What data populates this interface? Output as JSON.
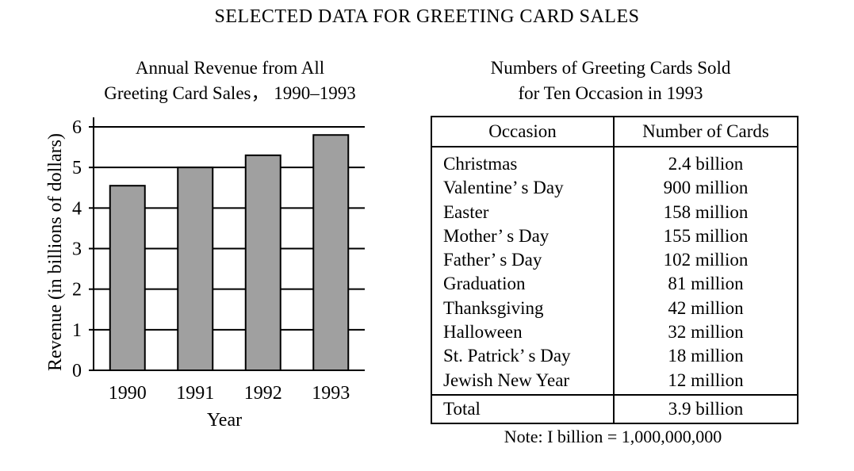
{
  "title": "SELECTED DATA FOR GREETING CARD SALES",
  "chart_data": {
    "type": "bar",
    "title_lines": [
      "Annual Revenue from All",
      "Greeting Card Sales， 1990–1993"
    ],
    "xlabel": "Year",
    "ylabel": "Revenue (in billions of dollars)",
    "categories": [
      "1990",
      "1991",
      "1992",
      "1993"
    ],
    "values": [
      4.55,
      5.0,
      5.3,
      5.8
    ],
    "ylim": [
      0,
      6
    ],
    "yticks": [
      "0",
      "1",
      "2",
      "3",
      "4",
      "5",
      "6"
    ],
    "grid": true,
    "bar_color": "#a0a0a0"
  },
  "table": {
    "title_lines": [
      "Numbers of Greeting Cards Sold",
      "for Ten Occasion in 1993"
    ],
    "headers": [
      "Occasion",
      "Number of Cards"
    ],
    "rows": [
      [
        "Christmas",
        "2.4 billion"
      ],
      [
        "Valentine’ s Day",
        "900 million"
      ],
      [
        "Easter",
        "158 million"
      ],
      [
        "Mother’ s Day",
        "155 million"
      ],
      [
        "Father’ s Day",
        "102 million"
      ],
      [
        "Graduation",
        "81 million"
      ],
      [
        "Thanksgiving",
        "42 million"
      ],
      [
        "Halloween",
        "32 million"
      ],
      [
        "St. Patrick’ s Day",
        "18 million"
      ],
      [
        "Jewish New Year",
        "12 million"
      ]
    ],
    "total": [
      "Total",
      "3.9 billion"
    ]
  },
  "note": "Note: I billion = 1,000,000,000"
}
